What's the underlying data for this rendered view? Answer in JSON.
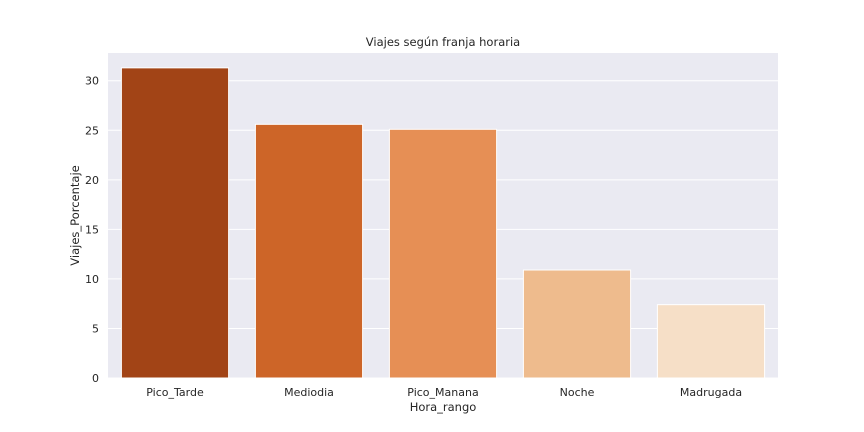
{
  "chart_data": {
    "type": "bar",
    "title": "Viajes según franja horaria",
    "xlabel": "Hora_rango",
    "ylabel": "Viajes_Porcentaje",
    "categories": [
      "Pico_Tarde",
      "Mediodia",
      "Pico_Manana",
      "Noche",
      "Madrugada"
    ],
    "values": [
      31.3,
      25.6,
      25.1,
      10.9,
      7.4
    ],
    "ylim": [
      0,
      32.8
    ],
    "yticks": [
      0,
      5,
      10,
      15,
      20,
      25,
      30
    ],
    "grid": true,
    "legend": "none",
    "colors": [
      "#a24416",
      "#cd6528",
      "#e68f55",
      "#eebb8d",
      "#f6dfc7"
    ],
    "background": "#eaeaf2"
  }
}
